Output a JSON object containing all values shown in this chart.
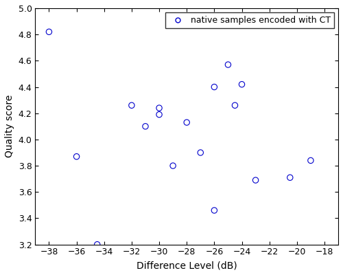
{
  "x": [
    -38,
    -36,
    -34.5,
    -32,
    -31,
    -30,
    -30,
    -29,
    -28,
    -27,
    -26,
    -26,
    -25,
    -24.5,
    -24,
    -23,
    -20.5,
    -19
  ],
  "y": [
    4.82,
    3.87,
    3.2,
    4.26,
    4.1,
    4.24,
    4.19,
    3.8,
    4.13,
    3.9,
    4.4,
    3.46,
    4.57,
    4.26,
    4.42,
    3.69,
    3.71,
    3.84
  ],
  "marker_color": "#0000cc",
  "marker_facecolor": "none",
  "marker": "o",
  "marker_size": 6,
  "legend_label": "native samples encoded with CT",
  "xlabel": "Difference Level (dB)",
  "ylabel": "Quality score",
  "xlim": [
    -39,
    -17
  ],
  "ylim": [
    3.2,
    5.0
  ],
  "xticks": [
    -38,
    -36,
    -34,
    -32,
    -30,
    -28,
    -26,
    -24,
    -22,
    -20,
    -18
  ],
  "yticks": [
    3.2,
    3.4,
    3.6,
    3.8,
    4.0,
    4.2,
    4.4,
    4.6,
    4.8,
    5.0
  ],
  "label_fontsize": 10,
  "tick_fontsize": 9,
  "legend_fontsize": 9
}
